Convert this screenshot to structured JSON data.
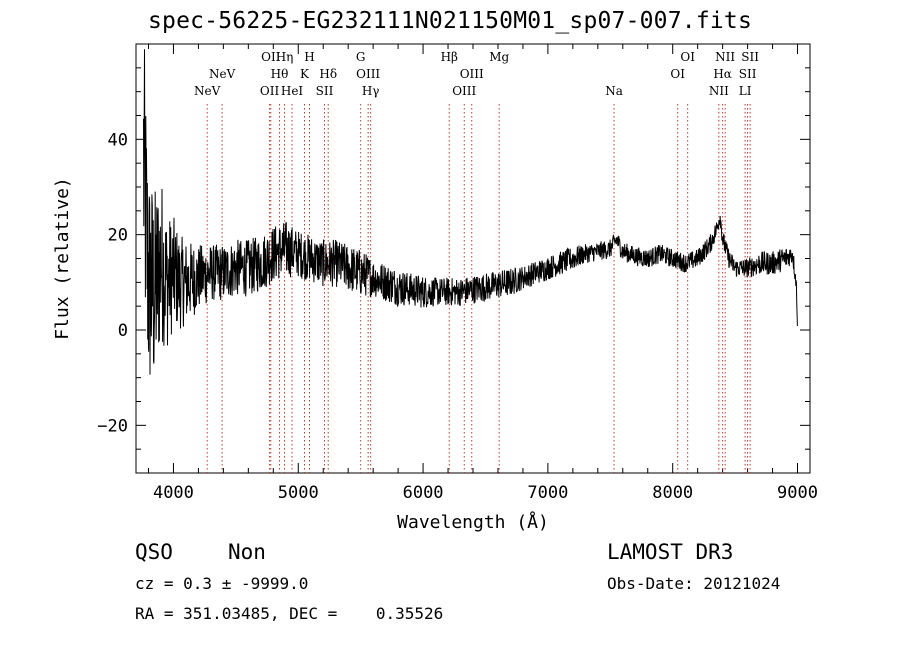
{
  "chart_data": {
    "type": "line",
    "title": "spec-56225-EG232111N021150M01_sp07-007.fits",
    "xlabel": "Wavelength (Å)",
    "ylabel": "Flux (relative)",
    "xlim": [
      3700,
      9100
    ],
    "ylim": [
      -30,
      60
    ],
    "xticks": [
      4000,
      5000,
      6000,
      7000,
      8000,
      9000
    ],
    "yticks": [
      -20,
      0,
      20,
      40
    ],
    "grid": false,
    "series": [
      {
        "name": "flux",
        "x": [
          3700,
          3760,
          3800,
          3850,
          3900,
          3950,
          4000,
          4050,
          4100,
          4200,
          4300,
          4400,
          4500,
          4600,
          4700,
          4800,
          4900,
          5000,
          5100,
          5200,
          5300,
          5400,
          5500,
          5600,
          5700,
          5800,
          5900,
          6000,
          6100,
          6200,
          6300,
          6400,
          6500,
          6600,
          6700,
          6800,
          6900,
          7000,
          7100,
          7200,
          7300,
          7400,
          7500,
          7550,
          7600,
          7700,
          7800,
          7900,
          8000,
          8100,
          8200,
          8300,
          8350,
          8380,
          8400,
          8450,
          8500,
          8600,
          8700,
          8800,
          8900,
          8960,
          8990,
          9000
        ],
        "y": [
          5,
          35,
          10,
          8,
          15,
          10,
          12,
          10,
          10,
          11,
          12,
          12,
          13,
          13,
          14,
          16,
          17,
          16,
          15,
          14,
          14,
          13,
          12,
          11,
          10,
          9,
          8.5,
          8,
          8,
          8,
          8,
          8.5,
          9,
          9.5,
          10,
          11,
          12,
          13,
          14,
          15,
          16,
          16.5,
          17,
          19,
          16.5,
          15.5,
          15,
          16,
          15,
          14,
          15,
          18,
          21,
          24,
          19,
          15,
          13,
          13,
          14,
          14,
          15,
          16,
          10,
          0
        ],
        "noise": [
          0,
          30,
          25,
          22,
          18,
          14,
          12,
          10,
          9,
          7,
          6,
          6,
          6,
          6,
          6,
          6,
          6,
          5,
          5,
          5,
          5,
          5,
          5,
          4,
          4,
          4,
          3.5,
          3.5,
          3,
          3,
          3,
          3,
          3,
          3,
          3,
          2.5,
          2.5,
          2.5,
          2.5,
          2.5,
          2,
          2,
          2,
          2,
          2,
          2,
          2,
          2,
          2,
          2,
          2,
          2,
          2,
          2,
          2,
          2,
          2,
          2,
          2.5,
          2.5,
          2.5,
          2,
          2,
          0
        ]
      }
    ],
    "lines": [
      {
        "label": "NeV",
        "wavelength": 4270,
        "row": 2
      },
      {
        "label": "NeV",
        "wavelength": 4390,
        "row": 1
      },
      {
        "label": "OII",
        "wavelength": 4770,
        "row": 2
      },
      {
        "label": "OII",
        "wavelength": 4780,
        "row": 0
      },
      {
        "label": "Hθ",
        "wavelength": 4850,
        "row": 1
      },
      {
        "label": "Hη",
        "wavelength": 4890,
        "row": 0
      },
      {
        "label": "HeI",
        "wavelength": 4950,
        "row": 2
      },
      {
        "label": "K",
        "wavelength": 5050,
        "row": 1
      },
      {
        "label": "H",
        "wavelength": 5090,
        "row": 0
      },
      {
        "label": "SII",
        "wavelength": 5210,
        "row": 2
      },
      {
        "label": "Hδ",
        "wavelength": 5240,
        "row": 1
      },
      {
        "label": "G",
        "wavelength": 5500,
        "row": 0
      },
      {
        "label": "OIII",
        "wavelength": 5560,
        "row": 1
      },
      {
        "label": "Hγ",
        "wavelength": 5580,
        "row": 2
      },
      {
        "label": "Hβ",
        "wavelength": 6210,
        "row": 0
      },
      {
        "label": "OIII",
        "wavelength": 6330,
        "row": 2
      },
      {
        "label": "OIII",
        "wavelength": 6390,
        "row": 1
      },
      {
        "label": "Mg",
        "wavelength": 6610,
        "row": 0
      },
      {
        "label": "Na",
        "wavelength": 7530,
        "row": 2
      },
      {
        "label": "OI",
        "wavelength": 8040,
        "row": 1
      },
      {
        "label": "OI",
        "wavelength": 8120,
        "row": 0
      },
      {
        "label": "NII",
        "wavelength": 8370,
        "row": 2
      },
      {
        "label": "Hα",
        "wavelength": 8400,
        "row": 1
      },
      {
        "label": "NII",
        "wavelength": 8420,
        "row": 0
      },
      {
        "label": "LI",
        "wavelength": 8580,
        "row": 2
      },
      {
        "label": "SII",
        "wavelength": 8600,
        "row": 1
      },
      {
        "label": "SII",
        "wavelength": 8620,
        "row": 0
      }
    ]
  },
  "info": {
    "class": "QSO",
    "subclass": "Non",
    "survey": "LAMOST DR3",
    "redshift": "cz = 0.3 ± -9999.0",
    "obs_date": "Obs-Date: 20121024",
    "coords": "RA = 351.03485, DEC =    0.35526"
  }
}
